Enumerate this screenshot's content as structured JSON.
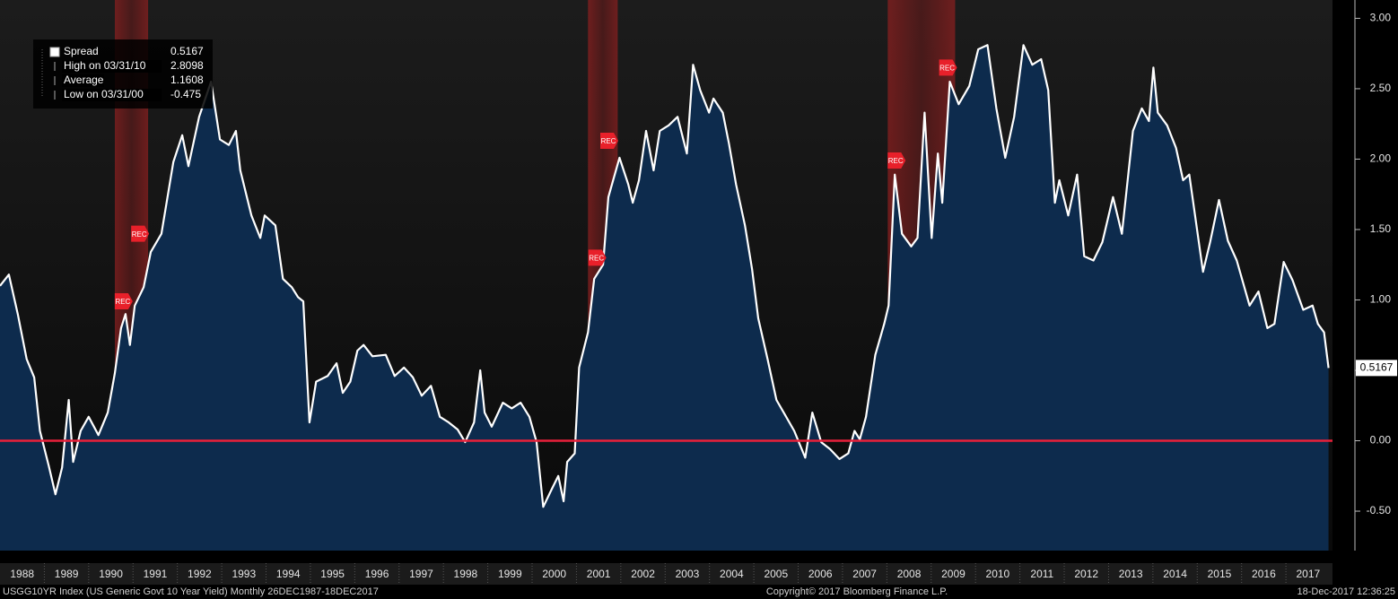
{
  "chart_data": {
    "type": "area-line",
    "series": [
      {
        "name": "Spread",
        "color": "#ffffff",
        "fill": "#0d2b4d",
        "x": [
          1988.0,
          1988.2,
          1988.4,
          1988.6,
          1988.77,
          1988.9,
          1989.1,
          1989.25,
          1989.4,
          1989.55,
          1989.65,
          1989.82,
          1990.0,
          1990.22,
          1990.43,
          1990.59,
          1990.73,
          1990.83,
          1990.93,
          1991.04,
          1991.24,
          1991.4,
          1991.64,
          1991.91,
          1992.11,
          1992.25,
          1992.49,
          1992.76,
          1992.96,
          1993.16,
          1993.32,
          1993.42,
          1993.67,
          1993.87,
          1993.97,
          1994.21,
          1994.38,
          1994.58,
          1994.72,
          1994.84,
          1994.98,
          1995.13,
          1995.39,
          1995.59,
          1995.73,
          1995.9,
          1996.06,
          1996.2,
          1996.4,
          1996.7,
          1996.9,
          1997.11,
          1997.31,
          1997.51,
          1997.72,
          1997.92,
          1998.12,
          1998.32,
          1998.49,
          1998.69,
          1998.83,
          1998.93,
          1999.09,
          1999.34,
          1999.54,
          1999.74,
          1999.94,
          2000.1,
          2000.25,
          2000.45,
          2000.59,
          2000.71,
          2000.79,
          2000.96,
          2001.06,
          2001.26,
          2001.4,
          2001.6,
          2001.72,
          2001.97,
          2002.17,
          2002.27,
          2002.41,
          2002.57,
          2002.74,
          2002.88,
          2003.08,
          2003.28,
          2003.49,
          2003.63,
          2003.79,
          2003.99,
          2004.09,
          2004.3,
          2004.44,
          2004.6,
          2004.8,
          2004.96,
          2005.1,
          2005.31,
          2005.51,
          2005.71,
          2005.91,
          2006.16,
          2006.32,
          2006.52,
          2006.72,
          2006.93,
          2007.13,
          2007.27,
          2007.39,
          2007.53,
          2007.74,
          2007.94,
          2008.04,
          2008.18,
          2008.34,
          2008.55,
          2008.69,
          2008.85,
          2009.01,
          2009.15,
          2009.25,
          2009.42,
          2009.62,
          2009.86,
          2010.06,
          2010.27,
          2010.47,
          2010.67,
          2010.87,
          2011.08,
          2011.28,
          2011.48,
          2011.64,
          2011.79,
          2011.89,
          2012.09,
          2012.29,
          2012.45,
          2012.66,
          2012.86,
          2013.1,
          2013.3,
          2013.55,
          2013.75,
          2013.91,
          2014.01,
          2014.11,
          2014.32,
          2014.52,
          2014.68,
          2014.82,
          2015.13,
          2015.29,
          2015.49,
          2015.69,
          2015.89,
          2016.18,
          2016.38,
          2016.58,
          2016.74,
          2016.95,
          2017.15,
          2017.39,
          2017.6,
          2017.72,
          2017.86,
          2017.96
        ],
        "values": [
          1.1,
          1.18,
          0.9,
          0.58,
          0.45,
          0.07,
          -0.18,
          -0.38,
          -0.19,
          0.29,
          -0.15,
          0.07,
          0.17,
          0.04,
          0.2,
          0.48,
          0.8,
          0.9,
          0.68,
          0.96,
          1.09,
          1.34,
          1.47,
          1.98,
          2.17,
          1.95,
          2.3,
          2.55,
          2.14,
          2.1,
          2.2,
          1.92,
          1.6,
          1.44,
          1.6,
          1.53,
          1.15,
          1.09,
          1.02,
          0.99,
          0.13,
          0.42,
          0.46,
          0.55,
          0.34,
          0.42,
          0.64,
          0.68,
          0.6,
          0.61,
          0.46,
          0.52,
          0.45,
          0.32,
          0.39,
          0.17,
          0.13,
          0.08,
          -0.01,
          0.13,
          0.5,
          0.2,
          0.1,
          0.27,
          0.23,
          0.27,
          0.17,
          -0.01,
          -0.47,
          -0.34,
          -0.25,
          -0.43,
          -0.15,
          -0.09,
          0.52,
          0.77,
          1.15,
          1.25,
          1.73,
          2.01,
          1.82,
          1.69,
          1.85,
          2.2,
          1.92,
          2.2,
          2.24,
          2.3,
          2.04,
          2.67,
          2.49,
          2.33,
          2.43,
          2.33,
          2.11,
          1.82,
          1.53,
          1.22,
          0.87,
          0.58,
          0.29,
          0.18,
          0.07,
          -0.12,
          0.2,
          -0.01,
          -0.06,
          -0.13,
          -0.09,
          0.07,
          0.01,
          0.17,
          0.61,
          0.83,
          0.96,
          1.89,
          1.47,
          1.38,
          1.44,
          2.33,
          1.44,
          2.04,
          1.69,
          2.55,
          2.39,
          2.52,
          2.78,
          2.81,
          2.36,
          2.01,
          2.3,
          2.81,
          2.67,
          2.71,
          2.49,
          1.69,
          1.85,
          1.6,
          1.89,
          1.31,
          1.28,
          1.41,
          1.73,
          1.47,
          2.2,
          2.36,
          2.27,
          2.65,
          2.33,
          2.24,
          2.08,
          1.85,
          1.89,
          1.2,
          1.41,
          1.71,
          1.42,
          1.28,
          0.96,
          1.06,
          0.8,
          0.83,
          1.27,
          1.14,
          0.93,
          0.96,
          0.83,
          0.77,
          0.5167
        ]
      }
    ],
    "last_value_label": "0.5167",
    "xlim": [
      1988.0,
      2018.05
    ],
    "ylim": [
      -0.78,
      3.13
    ],
    "yticks": [
      {
        "value": -0.5,
        "label": "-0.50"
      },
      {
        "value": 0,
        "label": "0.00"
      },
      {
        "value": 0.5,
        "label": "0.50"
      },
      {
        "value": 1,
        "label": "1.00"
      },
      {
        "value": 1.5,
        "label": "1.50"
      },
      {
        "value": 2,
        "label": "2.00"
      },
      {
        "value": 2.5,
        "label": "2.50"
      },
      {
        "value": 3,
        "label": "3.00"
      }
    ],
    "reference_line": {
      "value": 0,
      "color": "#e8203a"
    },
    "categories": [
      "1988",
      "1989",
      "1990",
      "1991",
      "1992",
      "1993",
      "1994",
      "1995",
      "1996",
      "1997",
      "1998",
      "1999",
      "2000",
      "2001",
      "2002",
      "2003",
      "2004",
      "2005",
      "2006",
      "2007",
      "2008",
      "2009",
      "2010",
      "2011",
      "2012",
      "2013",
      "2014",
      "2015",
      "2016",
      "2017"
    ],
    "recessions": [
      {
        "start": 1990.59,
        "end": 1991.34
      },
      {
        "start": 2001.26,
        "end": 2001.93
      },
      {
        "start": 2008.02,
        "end": 2009.54
      }
    ],
    "annotations": [
      {
        "label": "REC",
        "x": 1990.77,
        "y": 0.99
      },
      {
        "label": "REC",
        "x": 1991.14,
        "y": 1.47
      },
      {
        "label": "REC",
        "x": 2001.45,
        "y": 1.3
      },
      {
        "label": "REC",
        "x": 2001.72,
        "y": 2.13
      },
      {
        "label": "REC",
        "x": 2008.2,
        "y": 1.99
      },
      {
        "label": "REC",
        "x": 2009.36,
        "y": 2.65
      }
    ],
    "legend": [
      {
        "label": "Spread",
        "value": 0.5167
      },
      {
        "label": "High on 03/31/10",
        "value": 2.8098
      },
      {
        "label": "Average",
        "value": 1.1608
      },
      {
        "label": "Low on 03/31/00",
        "value": -0.475
      }
    ],
    "footer": {
      "left": "USGG10YR Index (US Generic Govt 10 Year Yield)  Monthly 26DEC1987-18DEC2017",
      "center": "Copyright© 2017 Bloomberg Finance L.P.",
      "right": "18-Dec-2017 12:36:25"
    }
  }
}
